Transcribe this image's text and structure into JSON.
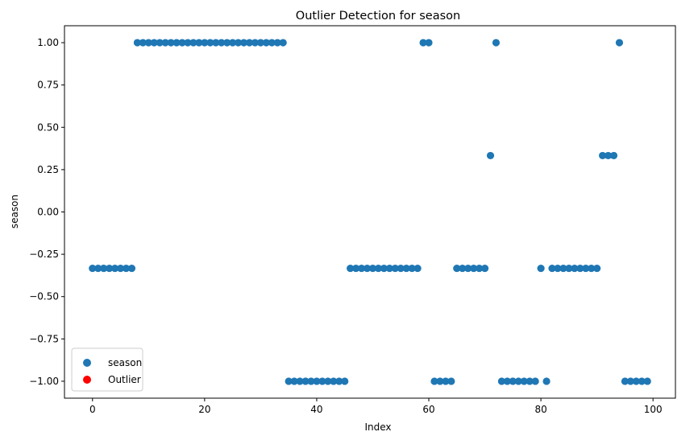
{
  "chart_data": {
    "type": "scatter",
    "title": "Outlier Detection for season",
    "xlabel": "Index",
    "ylabel": "season",
    "xlim": [
      -5,
      104
    ],
    "ylim": [
      -1.1,
      1.1
    ],
    "xticks": [
      0,
      20,
      40,
      60,
      80,
      100
    ],
    "xtick_labels": [
      "0",
      "20",
      "40",
      "60",
      "80",
      "100"
    ],
    "yticks": [
      -1.0,
      -0.75,
      -0.5,
      -0.25,
      0.0,
      0.25,
      0.5,
      0.75,
      1.0
    ],
    "ytick_labels": [
      "−1.00",
      "−0.75",
      "−0.50",
      "−0.25",
      "0.00",
      "0.25",
      "0.50",
      "0.75",
      "1.00"
    ],
    "grid": false,
    "legend_position": "bottom-left",
    "series": [
      {
        "name": "season",
        "color": "#1f77b4",
        "x": [
          0,
          1,
          2,
          3,
          4,
          5,
          6,
          7,
          8,
          9,
          10,
          11,
          12,
          13,
          14,
          15,
          16,
          17,
          18,
          19,
          20,
          21,
          22,
          23,
          24,
          25,
          26,
          27,
          28,
          29,
          30,
          31,
          32,
          33,
          34,
          35,
          36,
          37,
          38,
          39,
          40,
          41,
          42,
          43,
          44,
          45,
          46,
          47,
          48,
          49,
          50,
          51,
          52,
          53,
          54,
          55,
          56,
          57,
          58,
          59,
          60,
          61,
          62,
          63,
          64,
          65,
          66,
          67,
          68,
          69,
          70,
          71,
          72,
          73,
          74,
          75,
          76,
          77,
          78,
          79,
          80,
          81,
          82,
          83,
          84,
          85,
          86,
          87,
          88,
          89,
          90,
          91,
          92,
          93,
          94,
          95,
          96,
          97,
          98,
          99
        ],
        "y": [
          -0.333,
          -0.333,
          -0.333,
          -0.333,
          -0.333,
          -0.333,
          -0.333,
          -0.333,
          1,
          1,
          1,
          1,
          1,
          1,
          1,
          1,
          1,
          1,
          1,
          1,
          1,
          1,
          1,
          1,
          1,
          1,
          1,
          1,
          1,
          1,
          1,
          1,
          1,
          1,
          1,
          -1,
          -1,
          -1,
          -1,
          -1,
          -1,
          -1,
          -1,
          -1,
          -1,
          -1,
          -0.333,
          -0.333,
          -0.333,
          -0.333,
          -0.333,
          -0.333,
          -0.333,
          -0.333,
          -0.333,
          -0.333,
          -0.333,
          -0.333,
          -0.333,
          1,
          1,
          -1,
          -1,
          -1,
          -1,
          -0.333,
          -0.333,
          -0.333,
          -0.333,
          -0.333,
          -0.333,
          0.333,
          1,
          -1,
          -1,
          -1,
          -1,
          -1,
          -1,
          -1,
          -0.333,
          -1,
          -0.333,
          -0.333,
          -0.333,
          -0.333,
          -0.333,
          -0.333,
          -0.333,
          -0.333,
          -0.333,
          0.333,
          0.333,
          0.333,
          1,
          -1,
          -1,
          -1,
          -1,
          -1
        ]
      },
      {
        "name": "Outlier",
        "color": "#ff0000",
        "x": [],
        "y": []
      }
    ]
  }
}
